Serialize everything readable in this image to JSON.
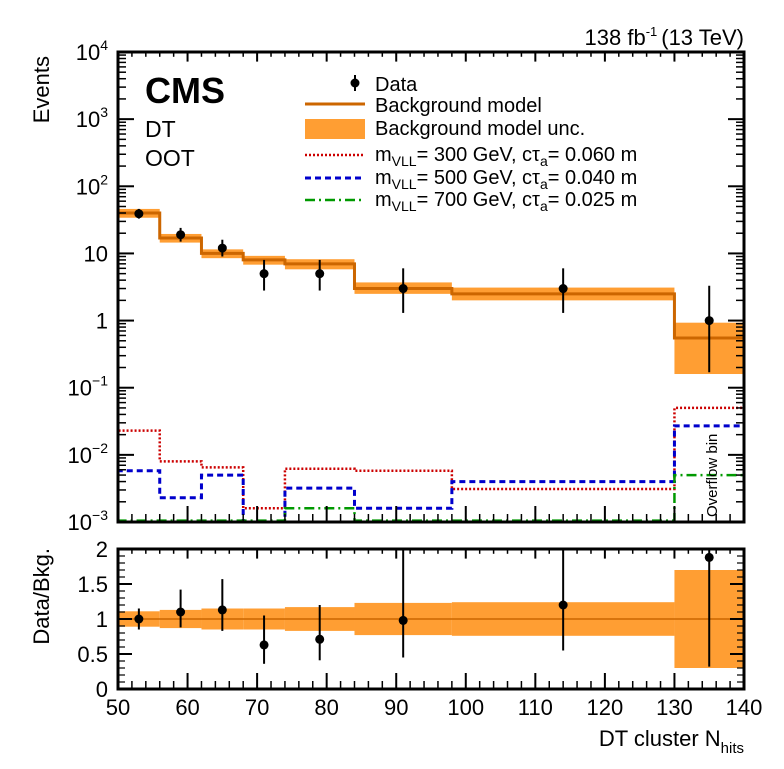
{
  "chart_data": [
    {
      "type": "step-histogram",
      "panel": "main",
      "lumi": {
        "main": "138 fb",
        "sup": "-1",
        "energy": "(13 TeV)"
      },
      "cms_label": "CMS",
      "category_labels": [
        "DT",
        "OOT"
      ],
      "ylabel": "Events",
      "yscale": "log",
      "ylim": [
        0.001,
        10000
      ],
      "xlim": [
        50,
        140
      ],
      "y_ticks": [
        {
          "v": 10000,
          "base": "10",
          "exp": "4"
        },
        {
          "v": 1000,
          "base": "10",
          "exp": "3"
        },
        {
          "v": 100,
          "base": "10",
          "exp": "2"
        },
        {
          "v": 10,
          "base": "10",
          "exp": ""
        },
        {
          "v": 1,
          "base": "1",
          "exp": ""
        },
        {
          "v": 0.1,
          "base": "10",
          "exp": "−1"
        },
        {
          "v": 0.01,
          "base": "10",
          "exp": "−2"
        },
        {
          "v": 0.001,
          "base": "10",
          "exp": "−3"
        }
      ],
      "bin_edges": [
        50,
        56,
        62,
        68,
        74,
        84,
        98,
        130,
        140
      ],
      "legend": [
        {
          "key": "data",
          "label": "Data"
        },
        {
          "key": "bkg",
          "label": "Background model"
        },
        {
          "key": "bkg_unc",
          "label": "Background model unc."
        },
        {
          "key": "sig300",
          "main": "m",
          "sub": "VLL",
          "rest": "= 300 GeV, cτ",
          "sub2": "a",
          "rest2": "= 0.060 m"
        },
        {
          "key": "sig500",
          "main": "m",
          "sub": "VLL",
          "rest": "= 500 GeV, cτ",
          "sub2": "a",
          "rest2": "= 0.040 m"
        },
        {
          "key": "sig700",
          "main": "m",
          "sub": "VLL",
          "rest": "= 700 GeV, cτ",
          "sub2": "a",
          "rest2": "= 0.025 m"
        }
      ],
      "series": [
        {
          "name": "Background model",
          "values": [
            40,
            17,
            10,
            8,
            7,
            3,
            2.5,
            0.55
          ]
        },
        {
          "name": "Background model unc. low",
          "values": [
            34,
            14.5,
            8.5,
            6.8,
            5.8,
            2.5,
            2.0,
            0.16
          ]
        },
        {
          "name": "Background model unc. high",
          "values": [
            46,
            19.5,
            11.5,
            9.2,
            8.2,
            3.7,
            3.1,
            0.93
          ]
        },
        {
          "name": "m_VLL = 300 GeV, ctau_a = 0.060 m",
          "color": "#cc0000",
          "values": [
            0.023,
            0.008,
            0.0065,
            0.0016,
            0.0062,
            0.0058,
            0.0031,
            0.05
          ]
        },
        {
          "name": "m_VLL = 500 GeV, ctau_a = 0.040 m",
          "color": "#0000cc",
          "values": [
            0.0058,
            0.0023,
            0.005,
            0.001,
            0.0032,
            0.0016,
            0.004,
            0.027
          ]
        },
        {
          "name": "m_VLL = 700 GeV, ctau_a = 0.025 m",
          "color": "#009900",
          "values": [
            0.00105,
            0.00105,
            0.00105,
            0.00105,
            0.0016,
            0.00105,
            0.00105,
            0.005
          ]
        }
      ],
      "data_points": [
        {
          "x": 53,
          "y": 39,
          "lo": 33,
          "hi": 46
        },
        {
          "x": 59,
          "y": 19,
          "lo": 15,
          "hi": 24
        },
        {
          "x": 65,
          "y": 12,
          "lo": 9,
          "hi": 16
        },
        {
          "x": 71,
          "y": 5,
          "lo": 2.8,
          "hi": 8
        },
        {
          "x": 79,
          "y": 5,
          "lo": 2.8,
          "hi": 8
        },
        {
          "x": 91,
          "y": 3,
          "lo": 1.3,
          "hi": 6
        },
        {
          "x": 114,
          "y": 3,
          "lo": 1.3,
          "hi": 6
        },
        {
          "x": 135,
          "y": 1,
          "lo": 0.17,
          "hi": 3.3
        }
      ],
      "annotation": "Overflow bin",
      "colors": {
        "bkg_line": "#cc6600",
        "bkg_band": "#ff9e33",
        "data": "#000000"
      }
    },
    {
      "type": "ratio",
      "panel": "ratio",
      "ylabel": "Data/Bkg.",
      "xlabel": {
        "main": "DT cluster N",
        "sub": "hits"
      },
      "xlim": [
        50,
        140
      ],
      "ylim": [
        0,
        2
      ],
      "y_ticks": [
        "0",
        "0.5",
        "1",
        "1.5",
        "2"
      ],
      "x_ticks": [
        "50",
        "60",
        "70",
        "80",
        "90",
        "100",
        "110",
        "120",
        "130",
        "140"
      ],
      "band_halfwidth": [
        0.11,
        0.13,
        0.15,
        0.15,
        0.17,
        0.23,
        0.24,
        0.7
      ],
      "points": [
        {
          "x": 53,
          "y": 1.0,
          "lo": 0.85,
          "hi": 1.15
        },
        {
          "x": 59,
          "y": 1.1,
          "lo": 0.88,
          "hi": 1.42
        },
        {
          "x": 65,
          "y": 1.13,
          "lo": 0.83,
          "hi": 1.57
        },
        {
          "x": 71,
          "y": 0.63,
          "lo": 0.36,
          "hi": 1.05
        },
        {
          "x": 79,
          "y": 0.71,
          "lo": 0.41,
          "hi": 1.2
        },
        {
          "x": 91,
          "y": 0.98,
          "lo": 0.45,
          "hi": 2.0
        },
        {
          "x": 114,
          "y": 1.2,
          "lo": 0.55,
          "hi": 2.0
        },
        {
          "x": 135,
          "y": 1.88,
          "lo": 0.32,
          "hi": 2.0
        }
      ]
    }
  ]
}
